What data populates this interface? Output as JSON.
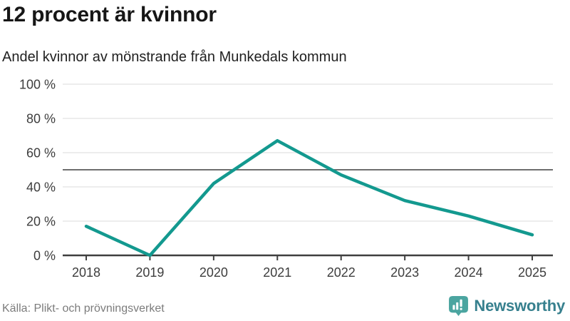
{
  "header": {
    "title": "12 procent är kvinnor",
    "subtitle": "Andel kvinnor av mönstrande från Munkedals kommun"
  },
  "chart_data": {
    "type": "line",
    "title": "12 procent är kvinnor",
    "subtitle": "Andel kvinnor av mönstrande från Munkedals kommun",
    "categories": [
      "2018",
      "2019",
      "2020",
      "2021",
      "2022",
      "2023",
      "2024",
      "2025"
    ],
    "series": [
      {
        "name": "Andel kvinnor av mönstrande",
        "values": [
          17,
          0,
          42,
          67,
          47,
          32,
          23,
          12
        ]
      }
    ],
    "xlabel": "",
    "ylabel": "",
    "ylim": [
      0,
      100
    ],
    "yticks": [
      0,
      20,
      40,
      60,
      80,
      100
    ],
    "ytick_suffix": " %",
    "reference_line": 50,
    "grid": true,
    "legend": "none",
    "colors": {
      "line": "#13998f",
      "gridline": "#e7e7e7",
      "reference_line": "#6e6e6e",
      "axis": "#3f3f3f",
      "tick_text": "#3d3d3d"
    }
  },
  "footer": {
    "source": "Källa: Plikt- och prövningsverket",
    "brand_name": "Newsworthy",
    "brand_colors": {
      "icon": "#4ba5a0",
      "wordmark": "#37808e"
    }
  }
}
